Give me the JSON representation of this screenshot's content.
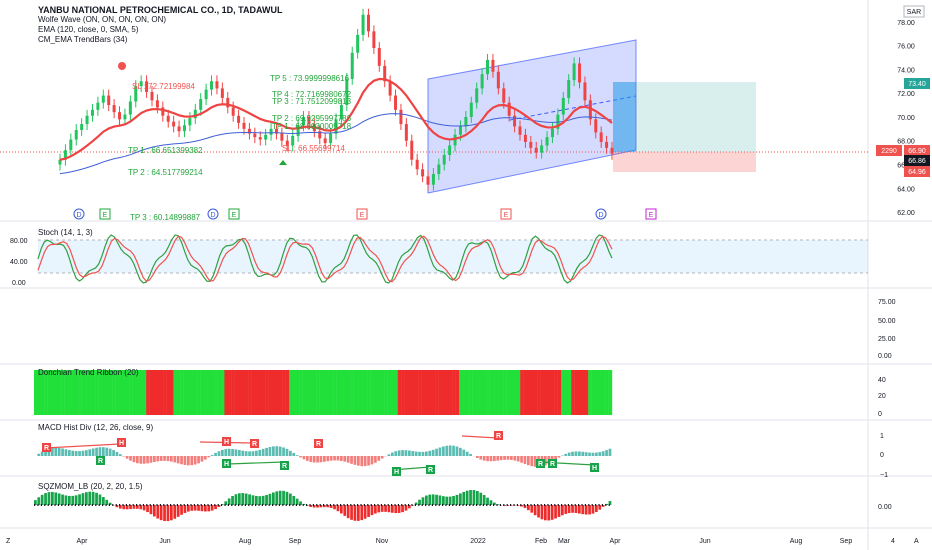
{
  "header": {
    "symbol_title": "YANBU NATIONAL PETROCHEMICAL CO., 1D, TADAWUL",
    "indicators": [
      "Wolfe Wave (ON, ON, ON, ON, ON)",
      "EMA (120, close, 0, SMA, 5)",
      "CM_EMA TrendBars (34)"
    ],
    "currency": "SAR"
  },
  "price_axis": {
    "ticks": [
      "78.00",
      "76.00",
      "74.00",
      "72.00",
      "70.00",
      "68.00",
      "66.00",
      "64.00",
      "62.00"
    ],
    "badges": [
      {
        "label": "73.40",
        "color": "#26a69a"
      },
      {
        "label": "2290",
        "color": "#ef5350"
      },
      {
        "label": "66.90",
        "color": "#ef5350"
      },
      {
        "label": "66.86",
        "color": "#131722"
      },
      {
        "label": "64.96",
        "color": "#ef5350"
      }
    ]
  },
  "annotations": {
    "sl": "SL : 72.72199984",
    "tp1": "TP 1 : 66.651399382",
    "tp2": "TP 2 : 64.517799214",
    "tp3": "TP 3 : 60.14899887",
    "ep1": "SL : 66.55699714",
    "stack": [
      "TP 5 : 73.9999998616",
      "TP 4 : 72.7169980672",
      "TP 3 : 71.7512099813",
      "TP 2 : 69.9295997786",
      "TP 1 : 68.8930009718"
    ]
  },
  "events": [
    "D",
    "E",
    "D",
    "E",
    "E",
    "E",
    "D",
    "E"
  ],
  "stoch": {
    "label": "Stoch (14, 1, 3)",
    "ticks": [
      "80.00",
      "40.00",
      "0.00"
    ]
  },
  "empty_pane": {
    "ticks": [
      "75.00",
      "50.00",
      "25.00",
      "0.00"
    ]
  },
  "donchian": {
    "label": "Donchian Trend Ribbon (20)",
    "ticks": [
      "40",
      "20",
      "0"
    ]
  },
  "macd": {
    "label": "MACD Hist Div (12, 26, close, 9)",
    "ticks": [
      "1",
      "0",
      "−1"
    ],
    "markers": [
      "R",
      "H",
      "R",
      "H",
      "R",
      "H",
      "R",
      "R",
      "H",
      "R",
      "R",
      "R",
      "R",
      "H"
    ]
  },
  "sqz": {
    "label": "SQZMOM_LB (20, 2, 20, 1.5)",
    "ticks": [
      "0.00"
    ]
  },
  "time_axis": {
    "labels": [
      "Apr",
      "Jun",
      "Aug",
      "Sep",
      "Nov",
      "2022",
      "Feb",
      "Mar",
      "Apr",
      "Jun",
      "Aug",
      "Sep",
      "4"
    ],
    "left_icon": "Z",
    "right_icon": "A"
  },
  "chart_data": {
    "type": "candlestick",
    "price_series": {
      "name": "",
      "close": [
        66.4,
        67.2,
        68.1,
        68.9,
        69.4,
        70.1,
        70.6,
        71.2,
        71.8,
        71.0,
        70.4,
        69.8,
        70.2,
        71.3,
        72.6,
        73.0,
        72.1,
        71.4,
        70.8,
        70.1,
        69.6,
        69.2,
        68.8,
        69.3,
        69.9,
        70.6,
        71.5,
        72.3,
        73.0,
        72.4,
        71.6,
        70.8,
        70.1,
        69.5,
        69.0,
        68.6,
        68.3,
        68.1,
        68.5,
        69.0,
        68.6,
        68.0,
        67.6,
        68.4,
        69.3,
        70.0,
        69.4,
        68.8,
        68.2,
        67.8,
        68.6,
        69.8,
        71.0,
        73.2,
        75.4,
        76.9,
        78.6,
        77.2,
        75.8,
        74.3,
        73.0,
        71.8,
        70.6,
        69.4,
        68.0,
        66.4,
        65.6,
        65.0,
        64.3,
        65.2,
        66.0,
        66.8,
        67.6,
        68.5,
        69.2,
        70.0,
        71.2,
        72.4,
        73.6,
        74.8,
        73.8,
        72.4,
        71.2,
        70.1,
        69.2,
        68.5,
        67.9,
        67.4,
        67.0,
        67.6,
        68.3,
        69.0,
        70.2,
        71.6,
        73.1,
        74.5,
        72.9,
        71.4,
        69.8,
        68.7,
        67.9,
        67.4,
        66.9
      ]
    },
    "ema_120_label": "EMA (120, close, 0, SMA, 5)",
    "trend_label": "CM_EMA TrendBars (34)",
    "ylim": [
      61.5,
      79.5
    ],
    "trade_box": {
      "target": 73.4,
      "entry": 66.9,
      "stop": 64.96
    }
  }
}
